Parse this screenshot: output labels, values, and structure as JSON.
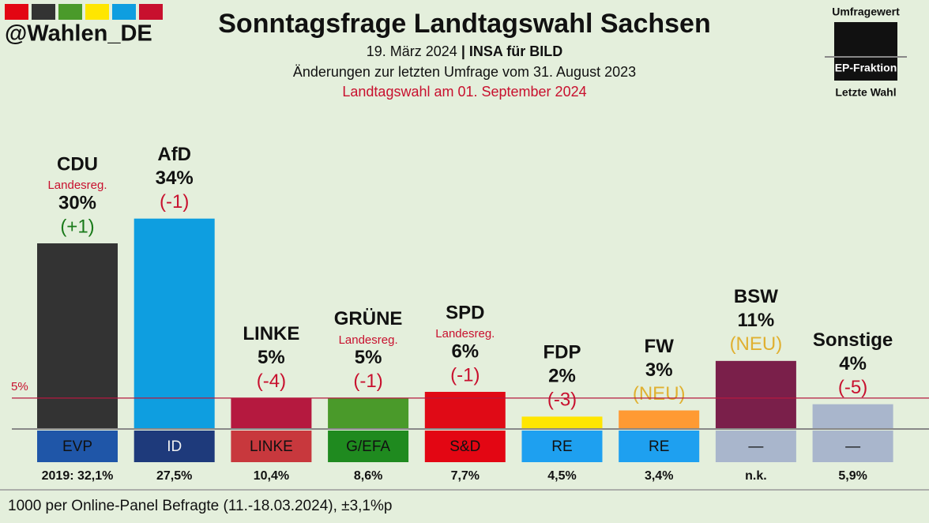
{
  "chart_data": {
    "type": "bar",
    "title": "Sonntagsfrage Landtagswahl Sachsen",
    "handle": "@Wahlen_DE",
    "subtitle_date": "19. März 2024",
    "subtitle_separator": "|",
    "subtitle_source": "INSA für BILD",
    "comparison": "Änderungen zur letzten Umfrage vom 31. August 2023",
    "election": "Landtagswahl am 01. September 2024",
    "legend_poll": "Umfragewert",
    "legend_fraction": "EP-Fraktion",
    "legend_last": "Letzte Wahl",
    "footnote": "1000 per Online-Panel Befragte (11.-18.03.2024), ±3,1%p",
    "categories": [
      "CDU",
      "AfD",
      "LINKE",
      "GRÜNE",
      "SPD",
      "FDP",
      "FW",
      "BSW",
      "Sonstige"
    ],
    "values": [
      30,
      34,
      5,
      5,
      6,
      2,
      3,
      11,
      4
    ],
    "value_labels": [
      "30%",
      "34%",
      "5%",
      "5%",
      "6%",
      "2%",
      "3%",
      "11%",
      "4%"
    ],
    "colors": [
      "#333333",
      "#0e9ee0",
      "#b5193f",
      "#4a9a2a",
      "#e00a16",
      "#ffe600",
      "#ff9a33",
      "#7a1f4a",
      "#a9b6cc"
    ],
    "notes": [
      "Landesreg.",
      null,
      null,
      "Landesreg.",
      "Landesreg.",
      null,
      null,
      null,
      null
    ],
    "changes": [
      "(+1)",
      "(-1)",
      "(-4)",
      "(-1)",
      "(-1)",
      "(-3)",
      "(NEU)",
      "(NEU)",
      "(-5)"
    ],
    "change_colors": [
      "#1a7a1a",
      "#c8102e",
      "#c8102e",
      "#c8102e",
      "#c8102e",
      "#c8102e",
      "#e0b030",
      "#e0b030",
      "#c8102e"
    ],
    "fractions": [
      "EVP",
      "ID",
      "LINKE",
      "G/EFA",
      "S&D",
      "RE",
      "RE",
      "—",
      "—"
    ],
    "fraction_colors": [
      "#1f56a8",
      "#1e3a7b",
      "#c8383d",
      "#1f8a1f",
      "#e30613",
      "#1ea0f0",
      "#1ea0f0",
      "#a9b6cc",
      "#a9b6cc"
    ],
    "fraction_text_colors": [
      "#111111",
      "#f0f0f0",
      "#111111",
      "#111111",
      "#111111",
      "#111111",
      "#111111",
      "#111111",
      "#111111"
    ],
    "last_election": [
      "2019: 32,1%",
      "27,5%",
      "10,4%",
      "8,6%",
      "7,7%",
      "4,5%",
      "3,4%",
      "n.k.",
      "5,9%"
    ],
    "threshold": {
      "value": 5,
      "label": "5%"
    },
    "ylim": [
      0,
      40
    ]
  }
}
